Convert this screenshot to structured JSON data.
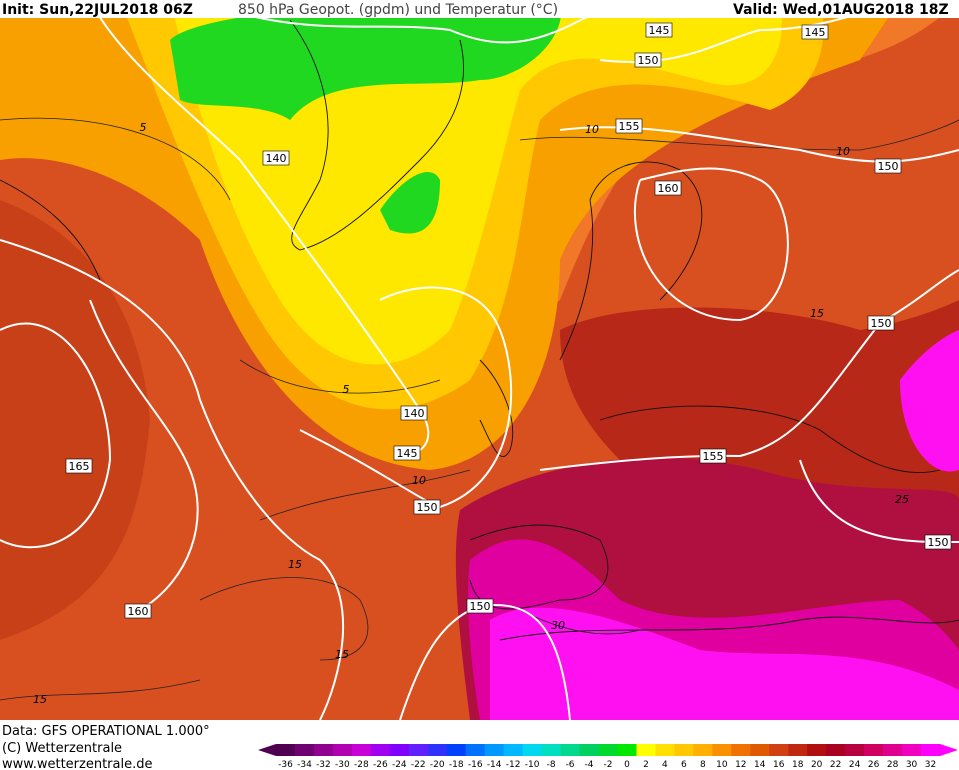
{
  "header": {
    "init": "Init: Sun,22JUL2018 06Z",
    "title": "850 hPa Geopot. (gpdm) und Temperatur (°C)",
    "valid": "Valid: Wed,01AUG2018 18Z"
  },
  "footer": {
    "data": "Data: GFS OPERATIONAL 1.000°",
    "copyright": "(C) Wetterzentrale",
    "url": "www.wetterzentrale.de"
  },
  "geopotential_labels": [
    "145",
    "150",
    "145",
    "155",
    "160",
    "150",
    "140",
    "150",
    "140",
    "145",
    "165",
    "155",
    "150",
    "150",
    "160",
    "150"
  ],
  "temperature_labels": [
    "5",
    "10",
    "10",
    "5",
    "10",
    "15",
    "15",
    "15",
    "15",
    "25",
    "30"
  ],
  "legend": {
    "labels": [
      "-36",
      "-34",
      "-32",
      "-30",
      "-28",
      "-26",
      "-24",
      "-22",
      "-20",
      "-18",
      "-16",
      "-14",
      "-12",
      "-10",
      "-8",
      "-6",
      "-4",
      "-2",
      "0",
      "2",
      "4",
      "6",
      "8",
      "10",
      "12",
      "14",
      "16",
      "18",
      "20",
      "22",
      "24",
      "26",
      "28",
      "30",
      "32"
    ],
    "colors": [
      "#500050",
      "#700070",
      "#900090",
      "#b000b0",
      "#c800d8",
      "#a000f0",
      "#8000ff",
      "#6020ff",
      "#3030ff",
      "#0040ff",
      "#0070ff",
      "#0098ff",
      "#00b8ff",
      "#00d8f0",
      "#00e0c0",
      "#00d890",
      "#00d060",
      "#00d830",
      "#00e800",
      "#ffff00",
      "#ffe000",
      "#ffc800",
      "#ffb000",
      "#f89000",
      "#f07000",
      "#e05800",
      "#d04010",
      "#c02810",
      "#b01010",
      "#a80020",
      "#b80040",
      "#d00060",
      "#e00090",
      "#f000c0",
      "#ff00ff"
    ]
  }
}
